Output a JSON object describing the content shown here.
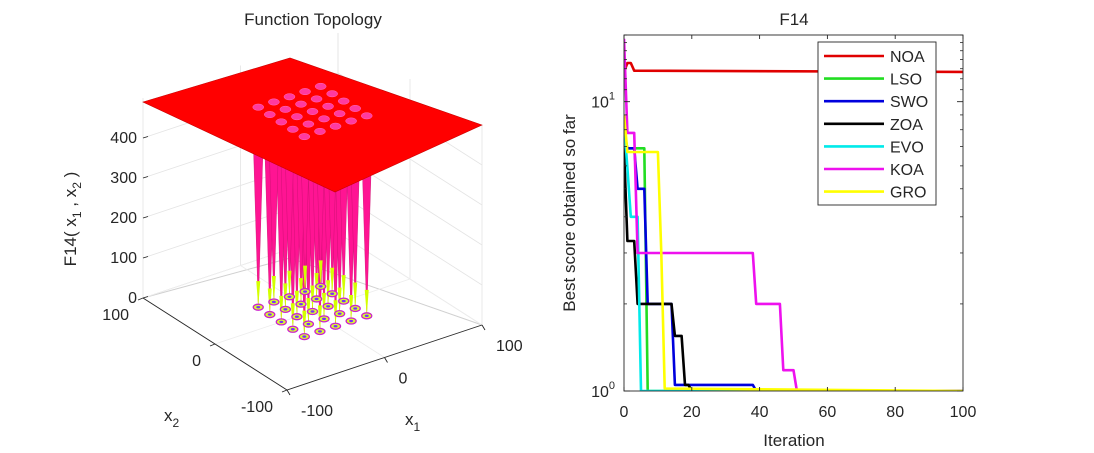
{
  "chart_data": [
    {
      "type": "surface",
      "title": "Function Topology",
      "zlabel": "F14( x 1 , x 2 )",
      "xlabel": "x 1",
      "ylabel": "x 2",
      "x_ticks": [
        "-100",
        "0",
        "100"
      ],
      "y_ticks": [
        "-100",
        "0",
        "100"
      ],
      "z_ticks": [
        "0",
        "100",
        "200",
        "300",
        "400"
      ],
      "xlim": [
        -100,
        100
      ],
      "ylim": [
        -100,
        100
      ],
      "zlim": [
        0,
        500
      ],
      "plateau_value": 500,
      "well_grid": [
        5,
        5
      ],
      "colors": {
        "plateau": "#ff0000",
        "wells": "#ff1493",
        "well_tips": "#d4ff00"
      }
    },
    {
      "type": "line",
      "title": "F14",
      "xlabel": "Iteration",
      "ylabel": "Best score obtained so far",
      "yscale": "log",
      "xlim": [
        0,
        100
      ],
      "ylim": [
        1,
        17
      ],
      "x_ticks": [
        "0",
        "20",
        "40",
        "60",
        "80",
        "100"
      ],
      "y_ticks": [
        {
          "label": "10",
          "exp": "0",
          "value": 1
        },
        {
          "label": "10",
          "exp": "1",
          "value": 10
        }
      ],
      "legend_position": "top-right",
      "series": [
        {
          "name": "NOA",
          "color": "#e00000",
          "points": [
            [
              0,
              12.67
            ],
            [
              1,
              13.6
            ],
            [
              2,
              13.6
            ],
            [
              3,
              12.8
            ],
            [
              100,
              12.67
            ]
          ]
        },
        {
          "name": "LSO",
          "color": "#22dd22",
          "points": [
            [
              0,
              7.9
            ],
            [
              1,
              6.9
            ],
            [
              5,
              6.9
            ],
            [
              6,
              6.9
            ],
            [
              7,
              1.0
            ],
            [
              100,
              1.0
            ]
          ]
        },
        {
          "name": "SWO",
          "color": "#0000dd",
          "points": [
            [
              0,
              6.9
            ],
            [
              3,
              6.9
            ],
            [
              4,
              5.0
            ],
            [
              6,
              5.0
            ],
            [
              7,
              2.0
            ],
            [
              14,
              2.0
            ],
            [
              15,
              1.05
            ],
            [
              38,
              1.05
            ],
            [
              39,
              1.0
            ],
            [
              100,
              1.0
            ]
          ]
        },
        {
          "name": "ZOA",
          "color": "#000000",
          "points": [
            [
              0,
              6.9
            ],
            [
              1,
              3.3
            ],
            [
              3,
              3.3
            ],
            [
              4,
              2.0
            ],
            [
              14,
              2.0
            ],
            [
              15,
              1.55
            ],
            [
              17,
              1.55
            ],
            [
              18,
              1.05
            ],
            [
              19,
              1.05
            ],
            [
              20,
              1.0
            ],
            [
              100,
              1.0
            ]
          ]
        },
        {
          "name": "EVO",
          "color": "#00eaea",
          "points": [
            [
              0,
              8.5
            ],
            [
              1,
              5.9
            ],
            [
              2,
              4.0
            ],
            [
              4,
              4.0
            ],
            [
              5,
              1.0
            ],
            [
              100,
              1.0
            ]
          ]
        },
        {
          "name": "KOA",
          "color": "#ee11ee",
          "points": [
            [
              0,
              16.5
            ],
            [
              1,
              7.8
            ],
            [
              3,
              7.8
            ],
            [
              4,
              3.0
            ],
            [
              38,
              3.0
            ],
            [
              39,
              2.0
            ],
            [
              46,
              2.0
            ],
            [
              47,
              1.18
            ],
            [
              50,
              1.18
            ],
            [
              51,
              1.0
            ],
            [
              100,
              1.0
            ]
          ]
        },
        {
          "name": "GRO",
          "color": "#ffff00",
          "points": [
            [
              0,
              9.0
            ],
            [
              1,
              6.7
            ],
            [
              10,
              6.7
            ],
            [
              11,
              3.0
            ],
            [
              12,
              1.02
            ],
            [
              100,
              1.0
            ]
          ]
        }
      ]
    }
  ]
}
